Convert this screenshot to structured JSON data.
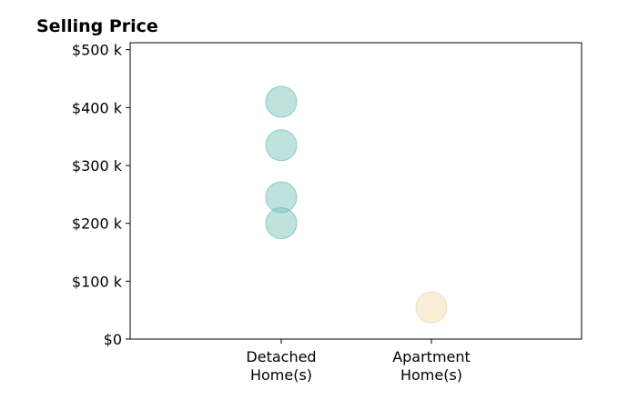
{
  "chart_data": {
    "type": "scatter",
    "title": "Selling Price",
    "xlabel": "",
    "ylabel": "",
    "categories": [
      "Detached Home(s)",
      "Apartment Home(s)"
    ],
    "category_label_lines": [
      [
        "Detached",
        "Home(s)"
      ],
      [
        "Apartment",
        "Home(s)"
      ]
    ],
    "yticks": [
      0,
      100000,
      200000,
      300000,
      400000,
      500000
    ],
    "ytick_labels": [
      "$0",
      "$100 k",
      "$200 k",
      "$300 k",
      "$400 k",
      "$500 k"
    ],
    "ylim": [
      0,
      512000
    ],
    "grid": false,
    "series": [
      {
        "category": "Detached Home(s)",
        "color": "#7fc5c0",
        "edge_color": "#5bb0aa",
        "values": [
          410000,
          335000,
          245000,
          200000
        ]
      },
      {
        "category": "Apartment Home(s)",
        "color": "#f5deb3",
        "edge_color": "#ead1a0",
        "values": [
          55000
        ]
      }
    ]
  }
}
